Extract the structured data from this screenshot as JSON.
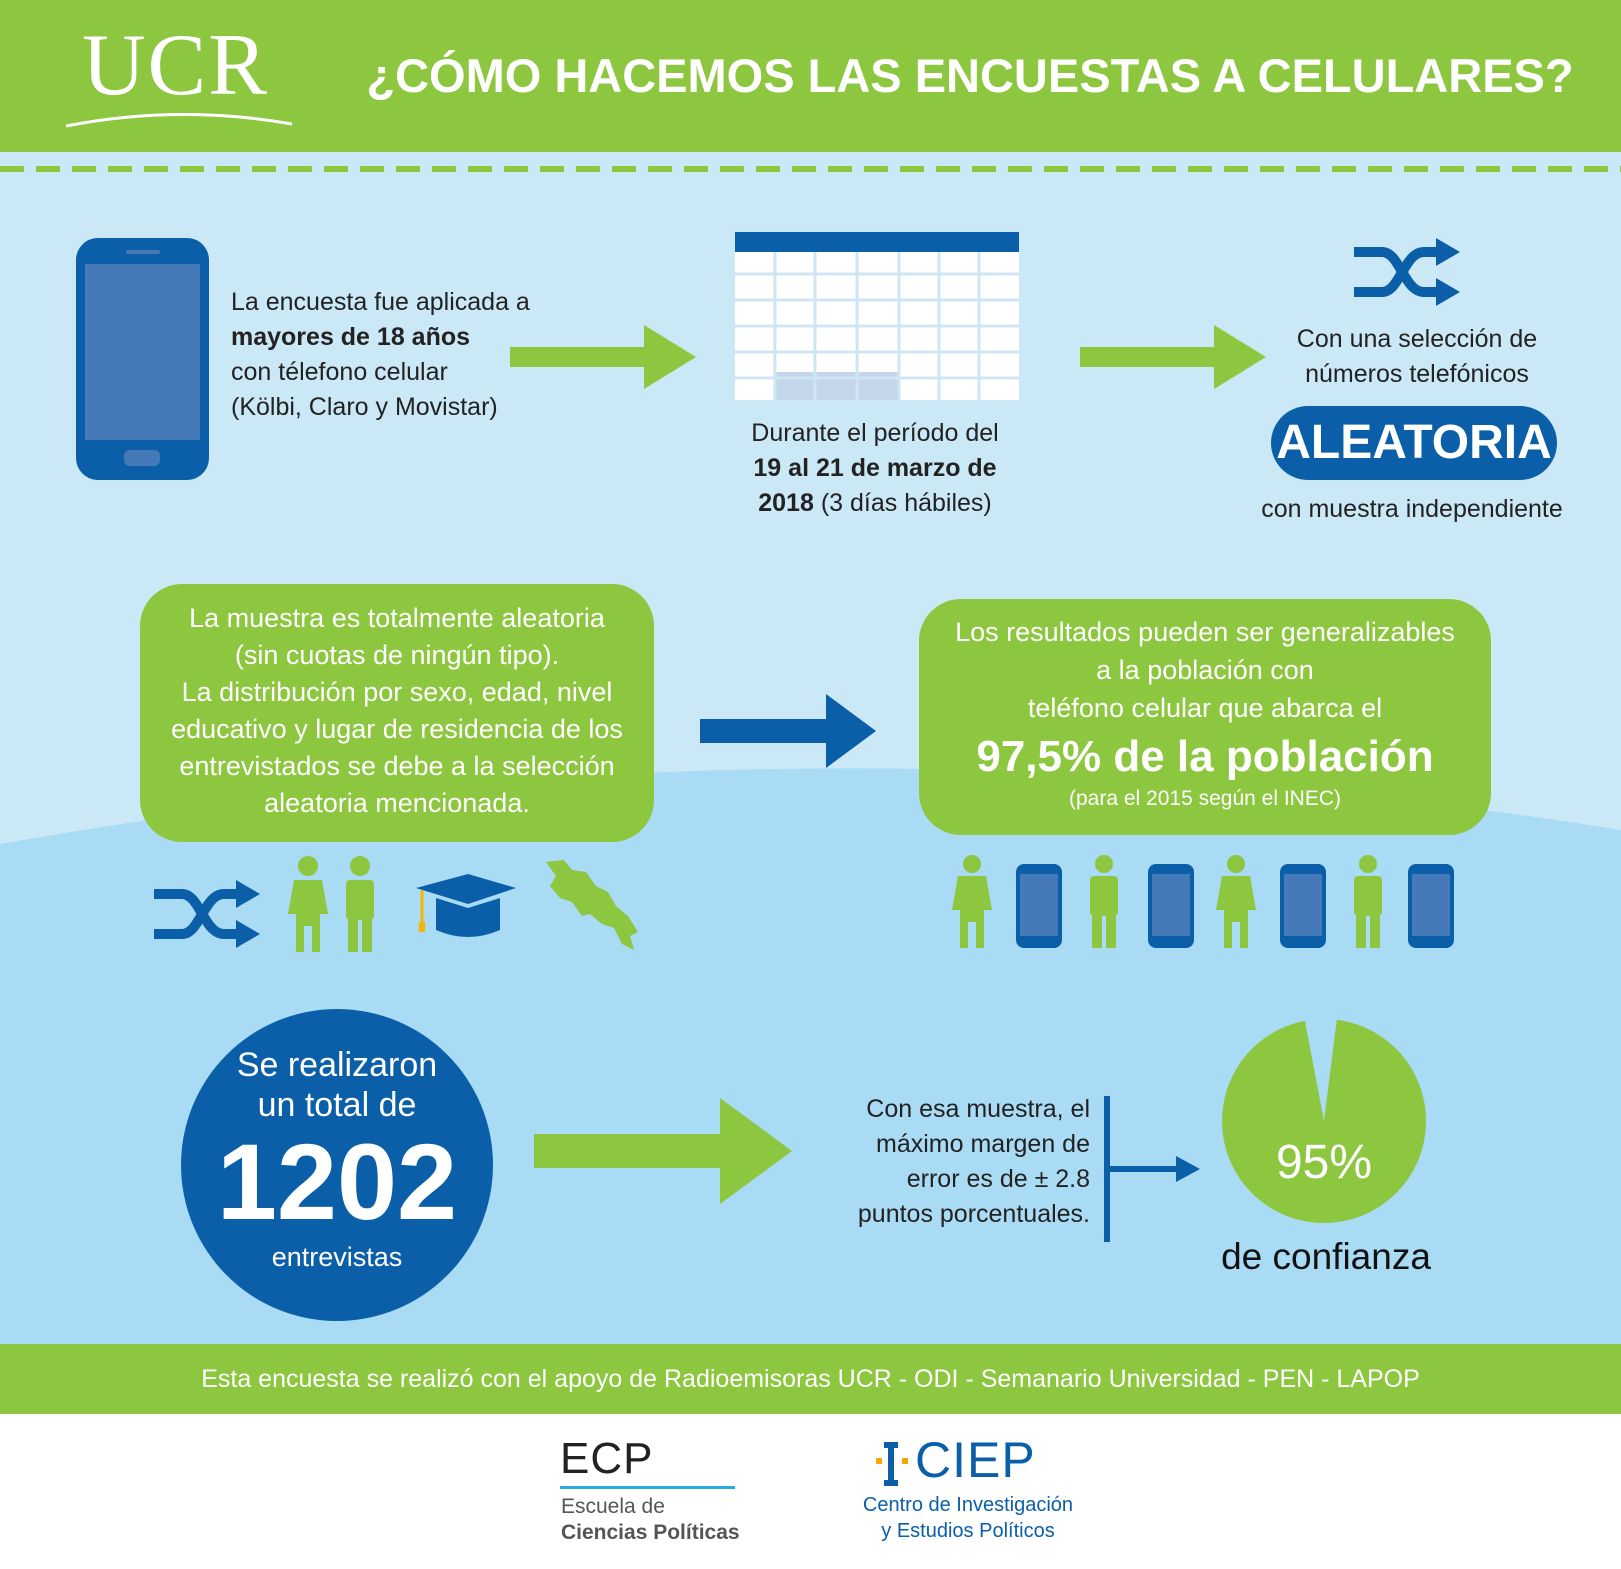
{
  "header": {
    "logo": "UCR",
    "title": "¿CÓMO HACEMOS LAS ENCUESTAS A CELULARES?"
  },
  "step1": {
    "line1": "La encuesta fue aplicada a",
    "line2": "mayores de 18 años",
    "line3": "con télefono celular",
    "line4": "(Kölbi, Claro y Movistar)"
  },
  "step2": {
    "line1": "Durante el período del",
    "line2_bold": "19 al 21 de marzo de",
    "line3_bold": "2018",
    "line3_rest": " (3 días hábiles)"
  },
  "step3": {
    "line1": "Con una selección de",
    "line2": "números telefónicos",
    "highlight": "ALEATORIA",
    "line3": "con muestra independiente"
  },
  "sample_box": {
    "lines": [
      "La muestra es totalmente aleatoria",
      "(sin cuotas de ningún tipo).",
      "La distribución por sexo, edad, nivel",
      "educativo y lugar de residencia de los",
      "entrevistados se debe a la selección",
      "aleatoria mencionada."
    ]
  },
  "results_box": {
    "line1": "Los resultados pueden ser generalizables",
    "line2": "a la población con",
    "line3": "teléfono celular que abarca el",
    "big": "97,5% de la población",
    "small": "(para el 2015 según el INEC)"
  },
  "total": {
    "line1": "Se realizaron",
    "line2": "un total  de",
    "number": "1202",
    "line3": "entrevistas"
  },
  "margin": {
    "line1": "Con esa muestra, el",
    "line2": "máximo margen de",
    "line3": "error es de ± 2.8",
    "line4": "puntos porcentuales."
  },
  "confidence": {
    "value": "95%",
    "label": "de confianza",
    "fraction": 0.95
  },
  "footer": {
    "text": "Esta encuesta se realizó con el apoyo de Radioemisoras UCR - ODI - Semanario Universidad - PEN - LAPOP"
  },
  "logos": {
    "ecp": "ECP",
    "ecp_sub1": "Escuela de",
    "ecp_sub2": "Ciencias Políticas",
    "ciep": "CIEP",
    "ciep_sub1": "Centro de Investigación",
    "ciep_sub2": "y Estudios Políticos"
  },
  "colors": {
    "green": "#8dc63f",
    "blue": "#0a5fa8",
    "light_blue": "#cbe8f7"
  }
}
